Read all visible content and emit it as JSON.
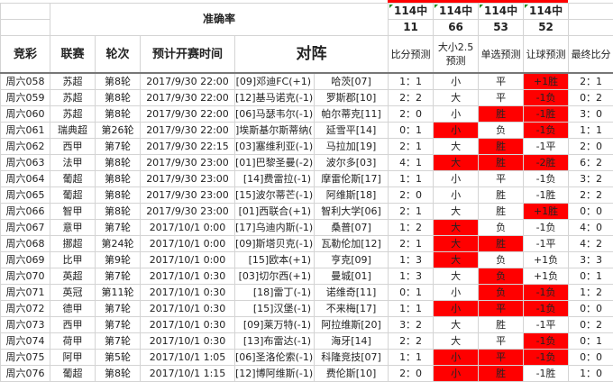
{
  "accuracy_title": "准确率",
  "accuracy": [
    {
      "label": "114中",
      "count": "11"
    },
    {
      "label": "114中",
      "count": "66"
    },
    {
      "label": "114中",
      "count": "53"
    },
    {
      "label": "114中",
      "count": "52"
    }
  ],
  "headers": {
    "jingcai": "竞彩",
    "league": "联赛",
    "round": "轮次",
    "time": "预计开赛时间",
    "match": "对阵",
    "score_pred": "比分预测",
    "ou_pred": "大小2.5预测",
    "single_pred": "单选预测",
    "handicap_pred": "让球预测",
    "final": "最终比分"
  },
  "highlight_color": "#ff0000",
  "rows": [
    {
      "id": "周六058",
      "league": "苏超",
      "round": "第8轮",
      "time": "2017/9/30 22:00",
      "home": "[09]邓迪FC(+1)",
      "away": "哈茨[07]",
      "score": "1：1",
      "ou": "小",
      "ou_hit": false,
      "single": "平",
      "single_hit": false,
      "hc": "+1胜",
      "hc_hit": true,
      "final": "2：1"
    },
    {
      "id": "周六059",
      "league": "苏超",
      "round": "第8轮",
      "time": "2017/9/30 22:00",
      "home": "[12]基马诺克(-1)",
      "away": "罗斯郡[10]",
      "score": "2：2",
      "ou": "大",
      "ou_hit": false,
      "single": "平",
      "single_hit": false,
      "hc": "-1负",
      "hc_hit": true,
      "final": "0：2"
    },
    {
      "id": "周六060",
      "league": "苏超",
      "round": "第8轮",
      "time": "2017/9/30 22:00",
      "home": "[06]马瑟韦尔(-1)",
      "away": "帕尔蒂克[11]",
      "score": "2：0",
      "ou": "小",
      "ou_hit": false,
      "single": "胜",
      "single_hit": true,
      "hc": "-1胜",
      "hc_hit": true,
      "final": "3：0"
    },
    {
      "id": "周六061",
      "league": "瑞典超",
      "round": "第26轮",
      "time": "2017/9/30 22:00",
      "home": "]埃斯基尔斯蒂纳(",
      "away": "延雪平[14]",
      "score": "0：1",
      "ou": "小",
      "ou_hit": true,
      "single": "负",
      "single_hit": false,
      "hc": "-1负",
      "hc_hit": true,
      "final": "1：1"
    },
    {
      "id": "周六062",
      "league": "西甲",
      "round": "第7轮",
      "time": "2017/9/30 22:15",
      "home": "[03]塞维利亚(-1)",
      "away": "马拉加[19]",
      "score": "2：1",
      "ou": "大",
      "ou_hit": false,
      "single": "胜",
      "single_hit": true,
      "hc": "-1平",
      "hc_hit": false,
      "final": "2：0"
    },
    {
      "id": "周六063",
      "league": "法甲",
      "round": "第8轮",
      "time": "2017/9/30 23:00",
      "home": "[01]巴黎圣曼(-2)",
      "away": "波尔多[03]",
      "score": "4：1",
      "ou": "大",
      "ou_hit": true,
      "single": "胜",
      "single_hit": true,
      "hc": "-2胜",
      "hc_hit": true,
      "final": "6：2"
    },
    {
      "id": "周六064",
      "league": "葡超",
      "round": "第8轮",
      "time": "2017/9/30 23:00",
      "home": "[14]费雷拉(-1)",
      "away": "摩雷伦斯[17]",
      "score": "1：1",
      "ou": "小",
      "ou_hit": false,
      "single": "平",
      "single_hit": false,
      "hc": "-1负",
      "hc_hit": false,
      "final": "3：2"
    },
    {
      "id": "周六065",
      "league": "葡超",
      "round": "第8轮",
      "time": "2017/9/30 23:00",
      "home": "[15]波尔蒂芒(-1)",
      "away": "阿维斯[18]",
      "score": "2：0",
      "ou": "小",
      "ou_hit": false,
      "single": "胜",
      "single_hit": false,
      "hc": "-1胜",
      "hc_hit": false,
      "final": "2：2"
    },
    {
      "id": "周六066",
      "league": "智甲",
      "round": "第8轮",
      "time": "2017/9/30 23:00",
      "home": "[01]西联合(+1)",
      "away": "智利大学[06]",
      "score": "2：1",
      "ou": "大",
      "ou_hit": false,
      "single": "胜",
      "single_hit": false,
      "hc": "+1胜",
      "hc_hit": true,
      "final": "0：0"
    },
    {
      "id": "周六067",
      "league": "意甲",
      "round": "第7轮",
      "time": "2017/10/1 0:00",
      "home": "[17]乌迪内斯(-1)",
      "away": "桑普[07]",
      "score": "1：2",
      "ou": "大",
      "ou_hit": true,
      "single": "负",
      "single_hit": false,
      "hc": "-1负",
      "hc_hit": false,
      "final": "4：0"
    },
    {
      "id": "周六068",
      "league": "挪超",
      "round": "第24轮",
      "time": "2017/10/1 0:00",
      "home": "[09]斯塔贝克(-1)",
      "away": "瓦勒伦加[12]",
      "score": "2：1",
      "ou": "大",
      "ou_hit": true,
      "single": "胜",
      "single_hit": true,
      "hc": "-1平",
      "hc_hit": false,
      "final": "4：2"
    },
    {
      "id": "周六069",
      "league": "比甲",
      "round": "第9轮",
      "time": "2017/10/1 0:00",
      "home": "[15]欧本(+1)",
      "away": "亨克[09]",
      "score": "1：3",
      "ou": "大",
      "ou_hit": true,
      "single": "负",
      "single_hit": false,
      "hc": "+1负",
      "hc_hit": false,
      "final": "3：3"
    },
    {
      "id": "周六070",
      "league": "英超",
      "round": "第7轮",
      "time": "2017/10/1 0:30",
      "home": "[03]切尔西(+1)",
      "away": "曼城[01]",
      "score": "1：3",
      "ou": "大",
      "ou_hit": false,
      "single": "负",
      "single_hit": true,
      "hc": "+1负",
      "hc_hit": false,
      "final": "0：1"
    },
    {
      "id": "周六071",
      "league": "英冠",
      "round": "第11轮",
      "time": "2017/10/1 0:30",
      "home": "[18]雷丁(-1)",
      "away": "诺维奇[11]",
      "score": "0：1",
      "ou": "小",
      "ou_hit": false,
      "single": "负",
      "single_hit": true,
      "hc": "-1负",
      "hc_hit": true,
      "final": "1：2"
    },
    {
      "id": "周六072",
      "league": "德甲",
      "round": "第7轮",
      "time": "2017/10/1 0:30",
      "home": "[15]汉堡(-1)",
      "away": "不来梅[17]",
      "score": "1：1",
      "ou": "小",
      "ou_hit": true,
      "single": "平",
      "single_hit": true,
      "hc": "-1负",
      "hc_hit": true,
      "final": "0：0"
    },
    {
      "id": "周六073",
      "league": "西甲",
      "round": "第7轮",
      "time": "2017/10/1 0:30",
      "home": "[09]莱万特(-1)",
      "away": "阿拉维斯[20]",
      "score": "3：2",
      "ou": "大",
      "ou_hit": false,
      "single": "胜",
      "single_hit": false,
      "hc": "-1平",
      "hc_hit": false,
      "final": "0：2"
    },
    {
      "id": "周六074",
      "league": "荷甲",
      "round": "第7轮",
      "time": "2017/10/1 0:30",
      "home": "[13]布雷达(-1)",
      "away": "海牙[14]",
      "score": "2：2",
      "ou": "大",
      "ou_hit": false,
      "single": "平",
      "single_hit": false,
      "hc": "-1负",
      "hc_hit": true,
      "final": "0：1"
    },
    {
      "id": "周六075",
      "league": "阿甲",
      "round": "第5轮",
      "time": "2017/10/1 1:05",
      "home": "[06]圣洛伦索(-1)",
      "away": "科隆竞技[07]",
      "score": "1：1",
      "ou": "小",
      "ou_hit": true,
      "single": "平",
      "single_hit": true,
      "hc": "-1负",
      "hc_hit": true,
      "final": "0：0"
    },
    {
      "id": "周六076",
      "league": "葡超",
      "round": "第8轮",
      "time": "2017/10/1 1:15",
      "home": "[12]博阿维斯(-1)",
      "away": "费伦斯[10]",
      "score": "2：0",
      "ou": "小",
      "ou_hit": true,
      "single": "胜",
      "single_hit": true,
      "hc": "-1胜",
      "hc_hit": false,
      "final": "1：0"
    }
  ]
}
